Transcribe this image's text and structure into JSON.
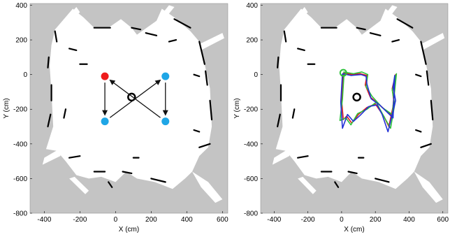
{
  "colors": {
    "unknown": "#c4c4c4",
    "free": "#ffffff",
    "obstacle": "#000000",
    "start_marker": "#ee1c1c",
    "waypoint_marker": "#1fa6e6",
    "arrow": "#111111",
    "traj_red": "#e0191b",
    "traj_green": "#2dc23a",
    "traj_blue": "#2331d6"
  },
  "chart_data": [
    {
      "type": "scatter",
      "title": "",
      "xlabel": "X (cm)",
      "ylabel": "Y (cm)",
      "xlim": [
        -480,
        630
      ],
      "ylim": [
        -800,
        410
      ],
      "xticks": [
        -400,
        -200,
        0,
        200,
        400,
        600
      ],
      "yticks": [
        400,
        200,
        0,
        -200,
        -400,
        -600,
        -800
      ],
      "background": "occupancy grid map",
      "waypoints": [
        {
          "x": -60,
          "y": -10,
          "color": "red",
          "role": "start"
        },
        {
          "x": 280,
          "y": -10,
          "color": "blue"
        },
        {
          "x": 280,
          "y": -270,
          "color": "blue"
        },
        {
          "x": -60,
          "y": -270,
          "color": "blue"
        }
      ],
      "arrows": [
        {
          "from": [
            -60,
            -10
          ],
          "to": [
            -60,
            -270
          ]
        },
        {
          "from": [
            -60,
            -270
          ],
          "to": [
            280,
            -10
          ]
        },
        {
          "from": [
            280,
            -10
          ],
          "to": [
            280,
            -270
          ]
        },
        {
          "from": [
            280,
            -270
          ],
          "to": [
            -60,
            -10
          ]
        }
      ]
    },
    {
      "type": "line",
      "title": "",
      "xlabel": "X (cm)",
      "ylabel": "Y (cm)",
      "xlim": [
        -480,
        630
      ],
      "ylim": [
        -800,
        410
      ],
      "xticks": [
        -400,
        -200,
        0,
        200,
        400,
        600
      ],
      "yticks": [
        400,
        200,
        0,
        -200,
        -400,
        -600,
        -800
      ],
      "background": "occupancy grid map",
      "start_marker": {
        "x": 10,
        "y": 10
      },
      "series": [
        {
          "color": "red",
          "x": [
            10,
            60,
            110,
            150,
            140,
            170,
            230,
            300,
            320,
            300,
            310,
            280,
            250,
            200,
            150,
            100,
            60,
            30,
            10,
            0,
            10
          ],
          "y": [
            10,
            0,
            5,
            -5,
            -60,
            -130,
            -180,
            -240,
            0,
            -80,
            -160,
            -300,
            -240,
            -170,
            -190,
            -230,
            -280,
            -240,
            -260,
            -150,
            10
          ]
        },
        {
          "color": "green",
          "x": [
            10,
            70,
            120,
            155,
            145,
            180,
            240,
            300,
            325,
            300,
            315,
            290,
            255,
            205,
            150,
            95,
            55,
            25,
            -10,
            5,
            15
          ],
          "y": [
            15,
            5,
            15,
            0,
            -70,
            -125,
            -190,
            -230,
            5,
            -90,
            -170,
            -310,
            -250,
            -160,
            -200,
            -225,
            -290,
            -250,
            -265,
            -140,
            15
          ]
        },
        {
          "color": "blue",
          "x": [
            5,
            55,
            115,
            145,
            150,
            175,
            225,
            305,
            315,
            305,
            320,
            275,
            240,
            210,
            160,
            110,
            70,
            35,
            5,
            -5,
            5
          ],
          "y": [
            5,
            -5,
            0,
            -10,
            -55,
            -140,
            -175,
            -250,
            -5,
            -70,
            -150,
            -330,
            -230,
            -175,
            -185,
            -235,
            -270,
            -230,
            -310,
            -160,
            5
          ]
        }
      ]
    }
  ]
}
